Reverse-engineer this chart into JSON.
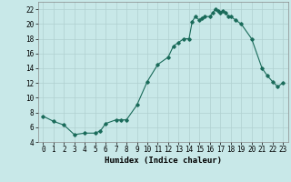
{
  "x_all": [
    0,
    1,
    2,
    3,
    4,
    5,
    5.5,
    6,
    7,
    7.5,
    8,
    9,
    10,
    11,
    12,
    12.5,
    13,
    13.5,
    14,
    14.3,
    14.6,
    15,
    15.2,
    15.5,
    16.0,
    16.3,
    16.5,
    16.8,
    17.0,
    17.2,
    17.5,
    17.8,
    18.0,
    18.5,
    19,
    20,
    21,
    21.5,
    22,
    22.5,
    23
  ],
  "y_all": [
    7.5,
    6.8,
    6.3,
    5.0,
    5.2,
    5.2,
    5.5,
    6.5,
    7.0,
    7.0,
    7.0,
    9.0,
    12.2,
    14.5,
    15.5,
    17.0,
    17.5,
    18.0,
    18.0,
    20.3,
    21.0,
    20.5,
    20.8,
    21.0,
    21.0,
    21.5,
    22.0,
    21.8,
    21.5,
    21.8,
    21.5,
    21.0,
    21.0,
    20.5,
    20.0,
    18.0,
    14.0,
    13.0,
    12.2,
    11.5,
    12.0
  ],
  "line_color": "#1a6b5a",
  "marker_color": "#1a6b5a",
  "bg_color": "#c8e8e8",
  "grid_color": "#b0d0d0",
  "xlabel": "Humidex (Indice chaleur)",
  "ylim": [
    4,
    23
  ],
  "xlim": [
    -0.5,
    23.5
  ],
  "yticks": [
    4,
    6,
    8,
    10,
    12,
    14,
    16,
    18,
    20,
    22
  ],
  "xticks": [
    0,
    1,
    2,
    3,
    4,
    5,
    6,
    7,
    8,
    9,
    10,
    11,
    12,
    13,
    14,
    15,
    16,
    17,
    18,
    19,
    20,
    21,
    22,
    23
  ],
  "tick_fontsize": 5.5,
  "xlabel_fontsize": 6.5
}
